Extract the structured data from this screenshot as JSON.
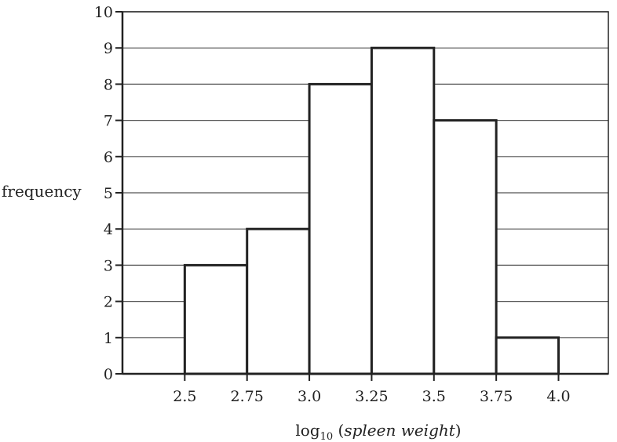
{
  "chart_data": {
    "type": "bar",
    "subtype": "histogram",
    "bins": [
      {
        "from": 2.5,
        "to": 2.75,
        "value": 3
      },
      {
        "from": 2.75,
        "to": 3.0,
        "value": 4
      },
      {
        "from": 3.0,
        "to": 3.25,
        "value": 8
      },
      {
        "from": 3.25,
        "to": 3.5,
        "value": 9
      },
      {
        "from": 3.5,
        "to": 3.75,
        "value": 7
      },
      {
        "from": 3.75,
        "to": 4.0,
        "value": 1
      }
    ],
    "xticks": [
      {
        "value": 2.5,
        "label": "2.5"
      },
      {
        "value": 2.75,
        "label": "2.75"
      },
      {
        "value": 3.0,
        "label": "3.0"
      },
      {
        "value": 3.25,
        "label": "3.25"
      },
      {
        "value": 3.5,
        "label": "3.5"
      },
      {
        "value": 3.75,
        "label": "3.75"
      },
      {
        "value": 4.0,
        "label": "4.0"
      }
    ],
    "yticks": [
      0,
      1,
      2,
      3,
      4,
      5,
      6,
      7,
      8,
      9,
      10
    ],
    "xlim": [
      2.25,
      4.2
    ],
    "ylim": [
      0,
      10
    ],
    "xlabel": {
      "prefix": "log",
      "subscript": "10",
      "paren_open": " (",
      "italic": "spleen weight",
      "paren_close": ")"
    },
    "ylabel": "frequency",
    "grid": "horizontal",
    "colors": {
      "bar_fill": "#ffffff",
      "bar_edge": "#222222",
      "grid": "#555555",
      "axis": "#222222"
    }
  }
}
